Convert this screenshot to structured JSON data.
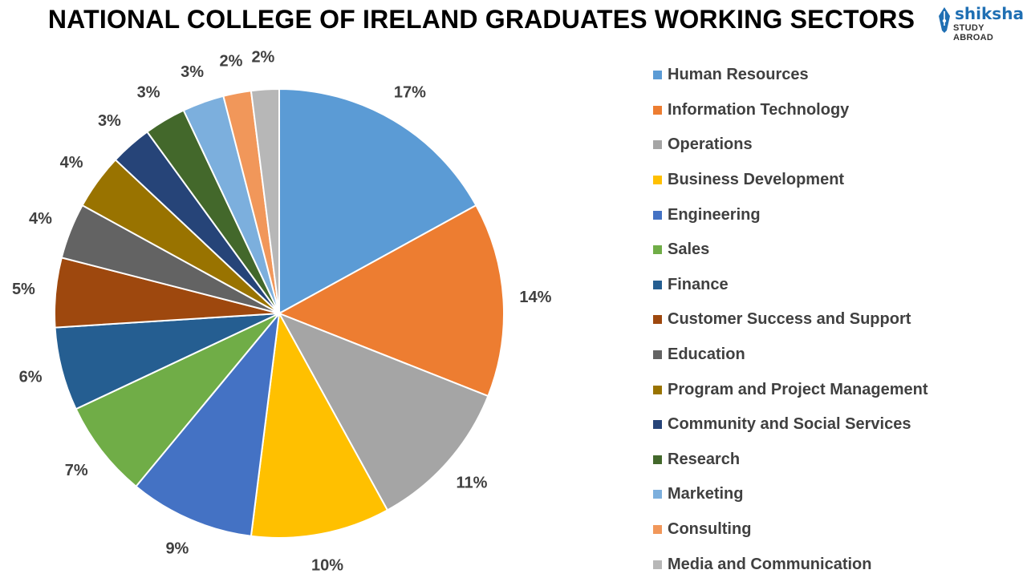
{
  "chart_data": {
    "type": "pie",
    "title": "NATIONAL COLLEGE OF IRELAND GRADUATES WORKING SECTORS",
    "legend_position": "right",
    "slices": [
      {
        "name": "Human Resources",
        "value": 17,
        "label": "17%",
        "color": "#5b9bd5"
      },
      {
        "name": "Information Technology",
        "value": 14,
        "label": "14%",
        "color": "#ed7d31"
      },
      {
        "name": "Operations",
        "value": 11,
        "label": "11%",
        "color": "#a5a5a5"
      },
      {
        "name": "Business Development",
        "value": 10,
        "label": "10%",
        "color": "#ffc000"
      },
      {
        "name": "Engineering",
        "value": 9,
        "label": "9%",
        "color": "#4472c4"
      },
      {
        "name": "Sales",
        "value": 7,
        "label": "7%",
        "color": "#70ad47"
      },
      {
        "name": "Finance",
        "value": 6,
        "label": "6%",
        "color": "#255e91"
      },
      {
        "name": "Customer Success and Support",
        "value": 5,
        "label": "5%",
        "color": "#9e480e"
      },
      {
        "name": "Education",
        "value": 4,
        "label": "4%",
        "color": "#636363"
      },
      {
        "name": "Program and Project Management",
        "value": 4,
        "label": "4%",
        "color": "#997300"
      },
      {
        "name": "Community and Social Services",
        "value": 3,
        "label": "3%",
        "color": "#264478"
      },
      {
        "name": "Research",
        "value": 3,
        "label": "3%",
        "color": "#43682b"
      },
      {
        "name": "Marketing",
        "value": 3,
        "label": "3%",
        "color": "#7cafdd"
      },
      {
        "name": "Consulting",
        "value": 2,
        "label": "2%",
        "color": "#f1975a"
      },
      {
        "name": "Media and Communication",
        "value": 2,
        "label": "2%",
        "color": "#b7b7b7"
      }
    ]
  },
  "logo": {
    "name": "shiksha",
    "subtitle": "STUDY ABROAD",
    "color": "#1f6fb3"
  }
}
